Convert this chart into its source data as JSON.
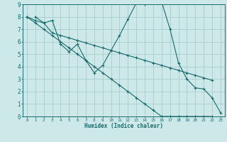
{
  "title": "",
  "xlabel": "Humidex (Indice chaleur)",
  "ylabel": "",
  "background_color": "#cce8e8",
  "grid_color": "#aacccc",
  "line_color": "#1a6b6b",
  "xlim": [
    -0.5,
    23.5
  ],
  "ylim": [
    0,
    9
  ],
  "xticks": [
    0,
    1,
    2,
    3,
    4,
    5,
    6,
    7,
    8,
    9,
    10,
    11,
    12,
    13,
    14,
    15,
    16,
    17,
    18,
    19,
    20,
    21,
    22,
    23
  ],
  "yticks": [
    0,
    1,
    2,
    3,
    4,
    5,
    6,
    7,
    8,
    9
  ],
  "series_x": [
    [
      1,
      2,
      3,
      4,
      5,
      6,
      7,
      8,
      9,
      10,
      11,
      12,
      13,
      14,
      15,
      16,
      17,
      18,
      19,
      20,
      21,
      22,
      23
    ],
    [
      0,
      1,
      2,
      3,
      4,
      5,
      6,
      7,
      8,
      9,
      10,
      11,
      12,
      13,
      14,
      15,
      16,
      17,
      18,
      19,
      20,
      21,
      22
    ],
    [
      0,
      1,
      2,
      3,
      4,
      5,
      6,
      7,
      8,
      9,
      10,
      11,
      12,
      13,
      14,
      15,
      16,
      17,
      18,
      19,
      20,
      21,
      22
    ]
  ],
  "series_y": [
    [
      8.0,
      7.5,
      7.7,
      5.8,
      5.2,
      5.8,
      4.5,
      3.5,
      4.1,
      5.3,
      6.5,
      7.8,
      9.1,
      9.0,
      9.5,
      9.2,
      7.0,
      4.3,
      3.0,
      2.3,
      2.2,
      1.5,
      0.3
    ],
    [
      8.0,
      7.7,
      7.5,
      6.7,
      6.5,
      6.3,
      6.1,
      5.9,
      5.7,
      5.5,
      5.3,
      5.1,
      4.9,
      4.7,
      4.5,
      4.3,
      4.1,
      3.9,
      3.7,
      3.5,
      3.3,
      3.1,
      2.9
    ],
    [
      8.0,
      7.5,
      7.0,
      6.5,
      6.0,
      5.5,
      5.0,
      4.5,
      4.0,
      3.5,
      3.0,
      2.5,
      2.0,
      1.5,
      1.0,
      0.5,
      0.0,
      0.0,
      0.0,
      0.0,
      0.0,
      0.0,
      0.0
    ]
  ]
}
